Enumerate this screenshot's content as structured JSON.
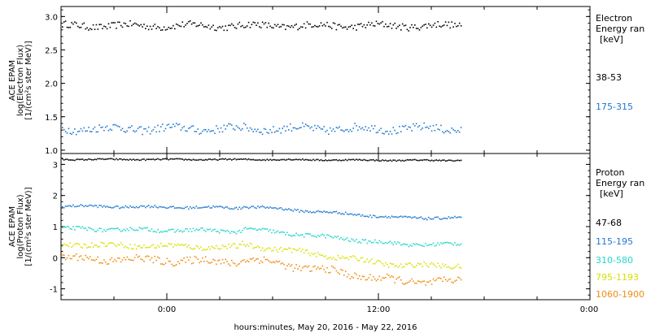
{
  "chart_data": [
    {
      "type": "scatter",
      "ylabel_lines": [
        "ACE EPAM",
        "log(Electron Flux)",
        "[1/(cm²s ster MeV)]"
      ],
      "ylim": [
        0.95,
        3.15
      ],
      "yticks": [
        "1.0",
        "1.5",
        "2.0",
        "2.5",
        "3.0"
      ],
      "ytick_values": [
        1.0,
        1.5,
        2.0,
        2.5,
        3.0
      ],
      "legend_title": [
        "Electron",
        "Energy ran",
        "[keV]"
      ],
      "series": [
        {
          "name": "38-53",
          "color": "#000000",
          "level": 2.87,
          "noise": 0.05,
          "trend": 0.0
        },
        {
          "name": "175-315",
          "color": "#1f78d0",
          "level": 1.33,
          "noise": 0.06,
          "trend": 0.0
        }
      ]
    },
    {
      "type": "scatter",
      "ylabel_lines": [
        "ACE EPAM",
        "log(Proton Flux)",
        "[1/(cm²s ster MeV)]"
      ],
      "ylim": [
        -1.35,
        3.35
      ],
      "yticks": [
        "-1",
        "0",
        "1",
        "2",
        "3"
      ],
      "ytick_values": [
        -1,
        0,
        1,
        2,
        3
      ],
      "legend_title": [
        "Proton",
        "Energy ran",
        "[keV]"
      ],
      "series": [
        {
          "name": "47-68",
          "color": "#000000",
          "level": 3.18,
          "noise": 0.02,
          "trend": -0.03
        },
        {
          "name": "115-195",
          "color": "#1f78d0",
          "level": 1.68,
          "noise": 0.04,
          "trend": -0.38
        },
        {
          "name": "310-580",
          "color": "#22d8c8",
          "level": 0.95,
          "noise": 0.06,
          "trend": -0.5
        },
        {
          "name": "795-1193",
          "color": "#d8e000",
          "level": 0.45,
          "noise": 0.08,
          "trend": -0.68
        },
        {
          "name": "1060-1900",
          "color": "#f08c10",
          "level": 0.0,
          "noise": 0.12,
          "trend": -0.75
        }
      ]
    }
  ],
  "xaxis": {
    "tick_labels": [
      "0:00",
      "12:00",
      "0:00"
    ],
    "xlabel": "hours:minutes, May 20, 2016 - May 22, 2016",
    "data_end_fraction": 0.755
  }
}
